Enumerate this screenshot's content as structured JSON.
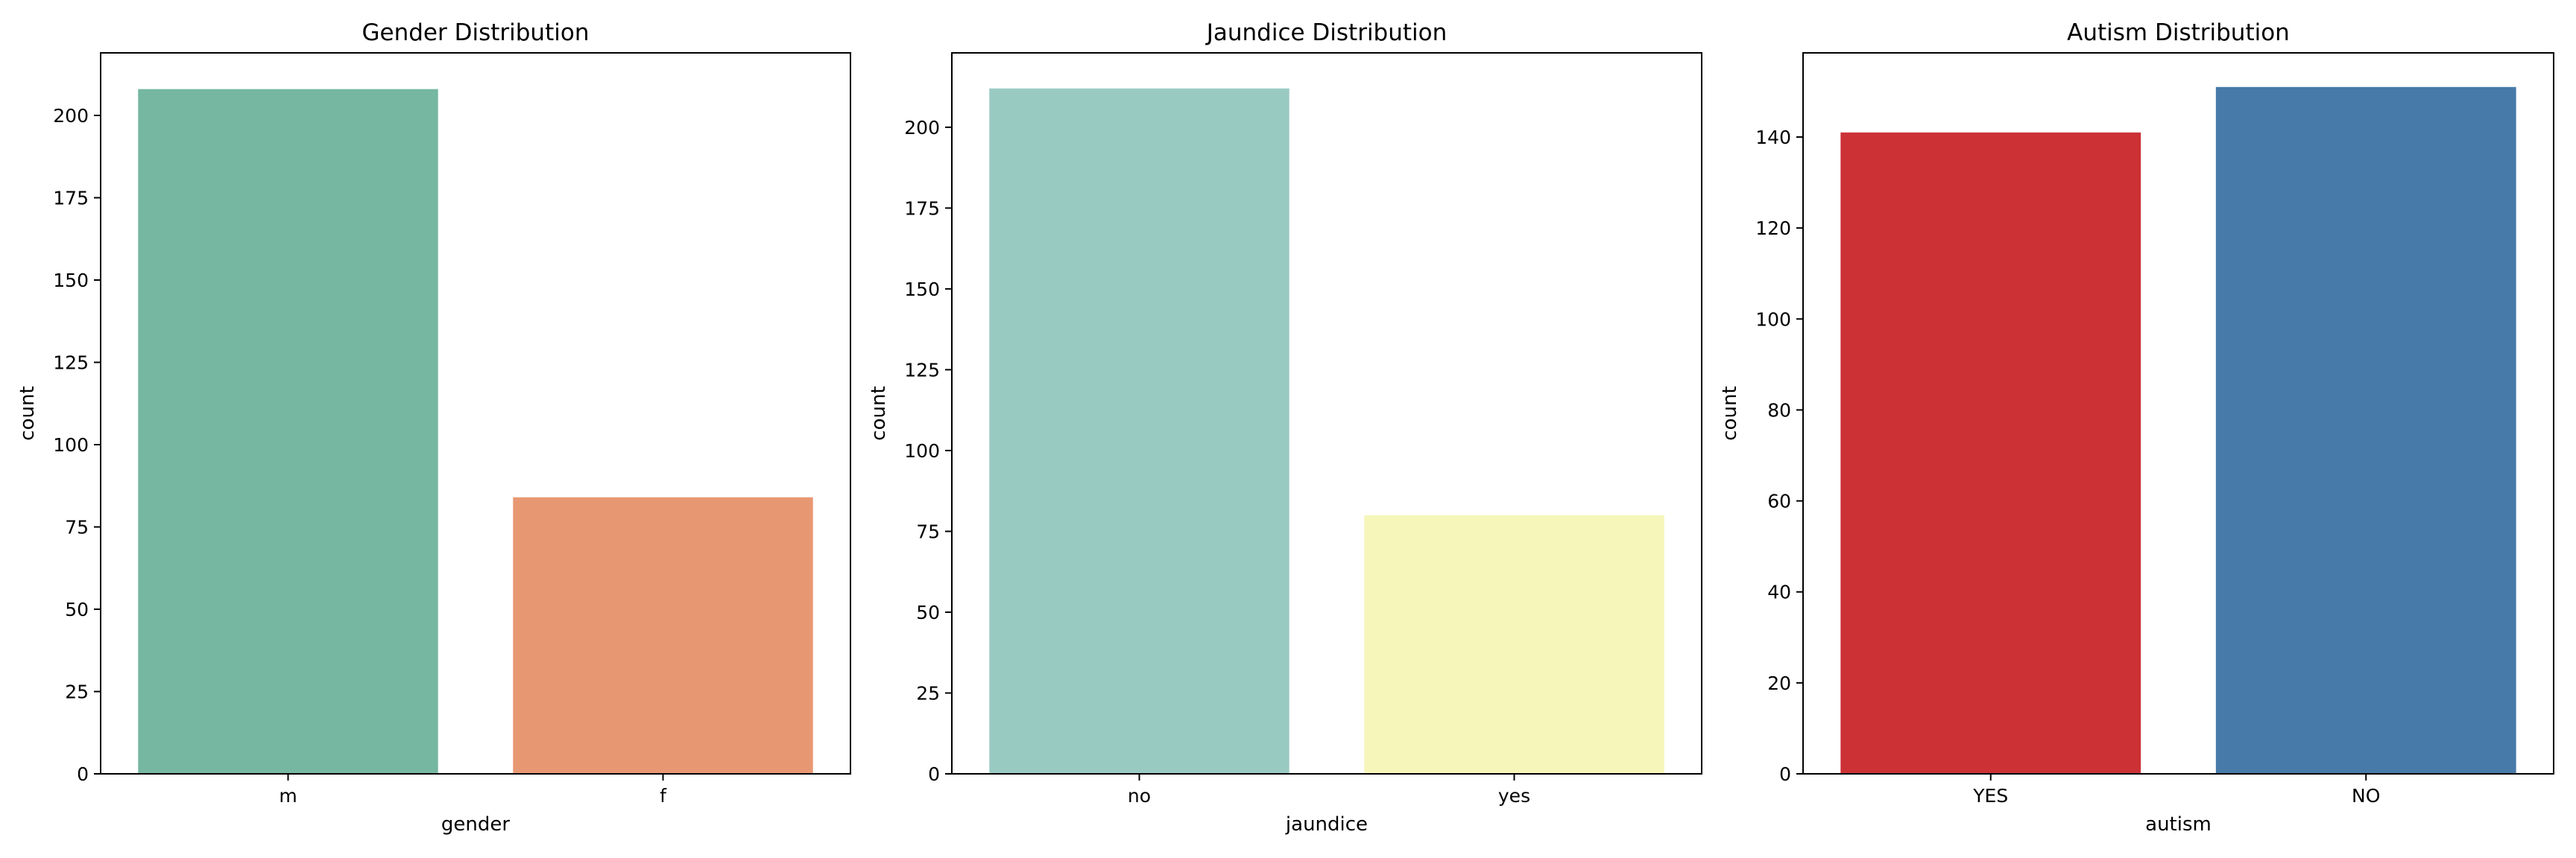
{
  "chart_data": [
    {
      "type": "bar",
      "title": "Gender Distribution",
      "xlabel": "gender",
      "ylabel": "count",
      "categories": [
        "m",
        "f"
      ],
      "values": [
        208,
        84
      ],
      "colors": [
        "#75b7a0",
        "#e89773"
      ],
      "ylim": [
        0,
        219
      ],
      "yticks": [
        0,
        25,
        50,
        75,
        100,
        125,
        150,
        175,
        200
      ],
      "ytick_labels": [
        "0",
        "25",
        "50",
        "75",
        "100",
        "125",
        "150",
        "175",
        "200"
      ],
      "grid": false,
      "legend": "none"
    },
    {
      "type": "bar",
      "title": "Jaundice Distribution",
      "xlabel": "jaundice",
      "ylabel": "count",
      "categories": [
        "no",
        "yes"
      ],
      "values": [
        212,
        80
      ],
      "colors": [
        "#99cac2",
        "#f6f6bb"
      ],
      "ylim": [
        0,
        223
      ],
      "yticks": [
        0,
        25,
        50,
        75,
        100,
        125,
        150,
        175,
        200
      ],
      "ytick_labels": [
        "0",
        "25",
        "50",
        "75",
        "100",
        "125",
        "150",
        "175",
        "200"
      ],
      "grid": false,
      "legend": "none"
    },
    {
      "type": "bar",
      "title": "Autism Distribution",
      "xlabel": "autism",
      "ylabel": "count",
      "categories": [
        "YES",
        "NO"
      ],
      "values": [
        141,
        151
      ],
      "colors": [
        "#cb3135",
        "#477aa8"
      ],
      "ylim": [
        0,
        158.5
      ],
      "yticks": [
        0,
        20,
        40,
        60,
        80,
        100,
        120,
        140
      ],
      "ytick_labels": [
        "0",
        "20",
        "40",
        "60",
        "80",
        "100",
        "120",
        "140"
      ],
      "grid": false,
      "legend": "none"
    }
  ]
}
